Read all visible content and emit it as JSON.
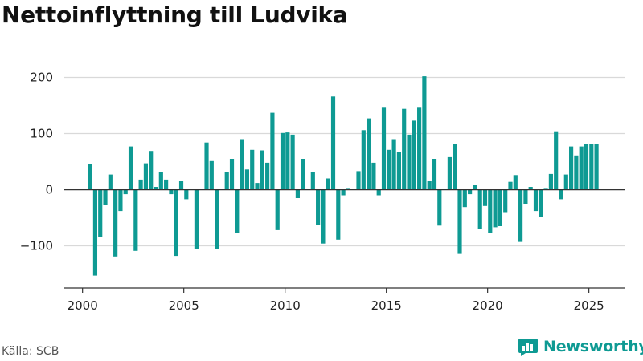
{
  "chart_data": {
    "type": "bar",
    "title": "Nettoinflyttning till Ludvika",
    "xlabel": "",
    "ylabel": "",
    "xlim": [
      1999.1,
      2026.8
    ],
    "ylim": [
      -175,
      225
    ],
    "x_ticks": [
      2000,
      2005,
      2010,
      2015,
      2020,
      2025
    ],
    "y_ticks": [
      -100,
      0,
      100,
      200
    ],
    "y_tick_labels": [
      "−100",
      "0",
      "100",
      "200"
    ],
    "grid": true,
    "bar_color": "#0e9a93",
    "series": [
      {
        "x": [
          2000.375,
          2000.625,
          2000.875,
          2001.125,
          2001.375,
          2001.625,
          2001.875,
          2002.125,
          2002.375,
          2002.625,
          2002.875,
          2003.125,
          2003.375,
          2003.625,
          2003.875,
          2004.125,
          2004.375,
          2004.625,
          2004.875,
          2005.125,
          2005.375,
          2005.625,
          2005.875,
          2006.125,
          2006.375,
          2006.625,
          2006.875,
          2007.125,
          2007.375,
          2007.625,
          2007.875,
          2008.125,
          2008.375,
          2008.625,
          2008.875,
          2009.125,
          2009.375,
          2009.625,
          2009.875,
          2010.125,
          2010.375,
          2010.625,
          2010.875,
          2011.125,
          2011.375,
          2011.625,
          2011.875,
          2012.125,
          2012.375,
          2012.625,
          2012.875,
          2013.125,
          2013.375,
          2013.625,
          2013.875,
          2014.125,
          2014.375,
          2014.625,
          2014.875,
          2015.125,
          2015.375,
          2015.625,
          2015.875,
          2016.125,
          2016.375,
          2016.625,
          2016.875,
          2017.125,
          2017.375,
          2017.625,
          2017.875,
          2018.125,
          2018.375,
          2018.625,
          2018.875,
          2019.125,
          2019.375,
          2019.625,
          2019.875,
          2020.125,
          2020.375,
          2020.625,
          2020.875,
          2021.125,
          2021.375,
          2021.625,
          2021.875,
          2022.125,
          2022.375,
          2022.625,
          2022.875,
          2023.125,
          2023.375,
          2023.625,
          2023.875,
          2024.125,
          2024.375,
          2024.625,
          2024.875,
          2025.125,
          2025.375
        ],
        "values": [
          45,
          -153,
          -85,
          -27,
          27,
          -119,
          -38,
          -8,
          77,
          -109,
          18,
          47,
          69,
          5,
          32,
          18,
          -8,
          -118,
          16,
          -17,
          0,
          -106,
          2,
          84,
          51,
          -106,
          2,
          31,
          55,
          -77,
          90,
          36,
          71,
          12,
          70,
          48,
          137,
          -72,
          101,
          102,
          98,
          -15,
          55,
          0,
          32,
          -63,
          -96,
          20,
          166,
          -89,
          -10,
          3,
          0,
          33,
          106,
          127,
          48,
          -10,
          146,
          71,
          90,
          67,
          144,
          98,
          123,
          146,
          202,
          16,
          55,
          -64,
          2,
          58,
          82,
          -113,
          -31,
          -8,
          9,
          -70,
          -29,
          -77,
          -67,
          -65,
          -40,
          14,
          26,
          -93,
          -25,
          5,
          -38,
          -48,
          3,
          28,
          104,
          -17,
          27,
          77,
          61,
          77,
          82,
          81,
          81
        ]
      }
    ]
  },
  "footer": {
    "source": "Källa: SCB",
    "brand_name": "Newsworthy",
    "brand_color": "#0e9a93",
    "brand_icon": "bar-chart-logo-icon"
  }
}
